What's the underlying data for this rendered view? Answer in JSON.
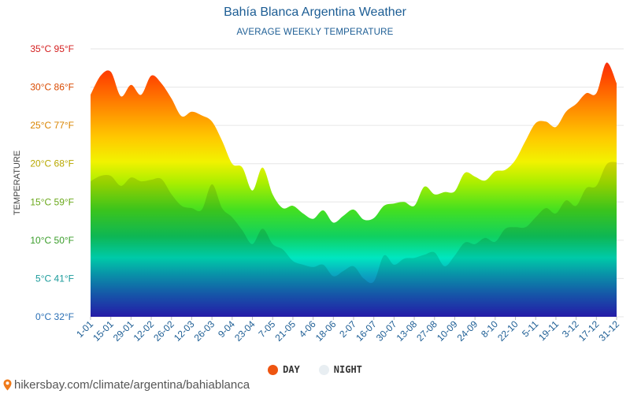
{
  "chart_data": {
    "type": "area",
    "title": "Bahía Blanca Argentina Weather",
    "subtitle": "AVERAGE WEEKLY TEMPERATURE",
    "ylabel": "TEMPERATURE",
    "ylim": [
      0,
      35
    ],
    "y_ticks": [
      {
        "value": 0,
        "label": "0°C 32°F",
        "color": "#2a6fb5"
      },
      {
        "value": 5,
        "label": "5°C 41°F",
        "color": "#1a9b9b"
      },
      {
        "value": 10,
        "label": "10°C 50°F",
        "color": "#3a9d2a"
      },
      {
        "value": 15,
        "label": "15°C 59°F",
        "color": "#6aa81a"
      },
      {
        "value": 20,
        "label": "20°C 68°F",
        "color": "#b8a800"
      },
      {
        "value": 25,
        "label": "25°C 77°F",
        "color": "#d98400"
      },
      {
        "value": 30,
        "label": "30°C 86°F",
        "color": "#d94a00"
      },
      {
        "value": 35,
        "label": "35°C 95°F",
        "color": "#d42020"
      }
    ],
    "x_labels": [
      "1-01",
      "15-01",
      "29-01",
      "12-02",
      "26-02",
      "12-03",
      "26-03",
      "9-04",
      "23-04",
      "7-05",
      "21-05",
      "4-06",
      "18-06",
      "2-07",
      "16-07",
      "30-07",
      "13-08",
      "27-08",
      "10-09",
      "24-09",
      "8-10",
      "22-10",
      "5-11",
      "19-11",
      "3-12",
      "17-12",
      "31-12"
    ],
    "series": [
      {
        "name": "DAY",
        "color": "#ee5511",
        "values": [
          29.0,
          31.5,
          32.0,
          28.8,
          30.3,
          29.0,
          31.5,
          30.5,
          28.5,
          26.2,
          26.8,
          26.3,
          25.5,
          23.0,
          20.0,
          19.5,
          16.5,
          19.5,
          16.0,
          14.2,
          14.5,
          13.5,
          12.8,
          13.9,
          12.3,
          13.2,
          14.0,
          12.7,
          12.9,
          14.5,
          14.8,
          15.0,
          14.5,
          17.0,
          16.0,
          16.3,
          16.4,
          18.8,
          18.3,
          17.8,
          19.0,
          19.2,
          20.5,
          23.0,
          25.3,
          25.5,
          24.8,
          26.8,
          27.8,
          29.2,
          29.2,
          33.2,
          30.5
        ]
      },
      {
        "name": "NIGHT",
        "color": "#e8eef2",
        "values": [
          17.7,
          18.4,
          18.4,
          17.1,
          18.2,
          17.7,
          17.9,
          18.0,
          16.0,
          14.5,
          14.2,
          14.0,
          17.3,
          14.2,
          13.0,
          11.3,
          9.5,
          11.5,
          9.5,
          8.8,
          7.3,
          6.8,
          6.5,
          6.8,
          5.3,
          6.0,
          6.6,
          5.0,
          4.6,
          8.0,
          6.8,
          7.6,
          7.7,
          8.1,
          8.4,
          6.6,
          8.0,
          9.7,
          9.5,
          10.3,
          9.8,
          11.5,
          11.7,
          11.7,
          13.0,
          14.2,
          13.5,
          15.2,
          14.5,
          16.8,
          17.1,
          19.9,
          20.2
        ]
      }
    ]
  },
  "legend": {
    "day_label": "DAY",
    "night_label": "NIGHT",
    "day_color": "#ee5511",
    "night_color": "#e8eef2"
  },
  "footer": {
    "text": "hikersbay.com/climate/argentina/bahiablanca",
    "icon": "map-pin-icon"
  }
}
